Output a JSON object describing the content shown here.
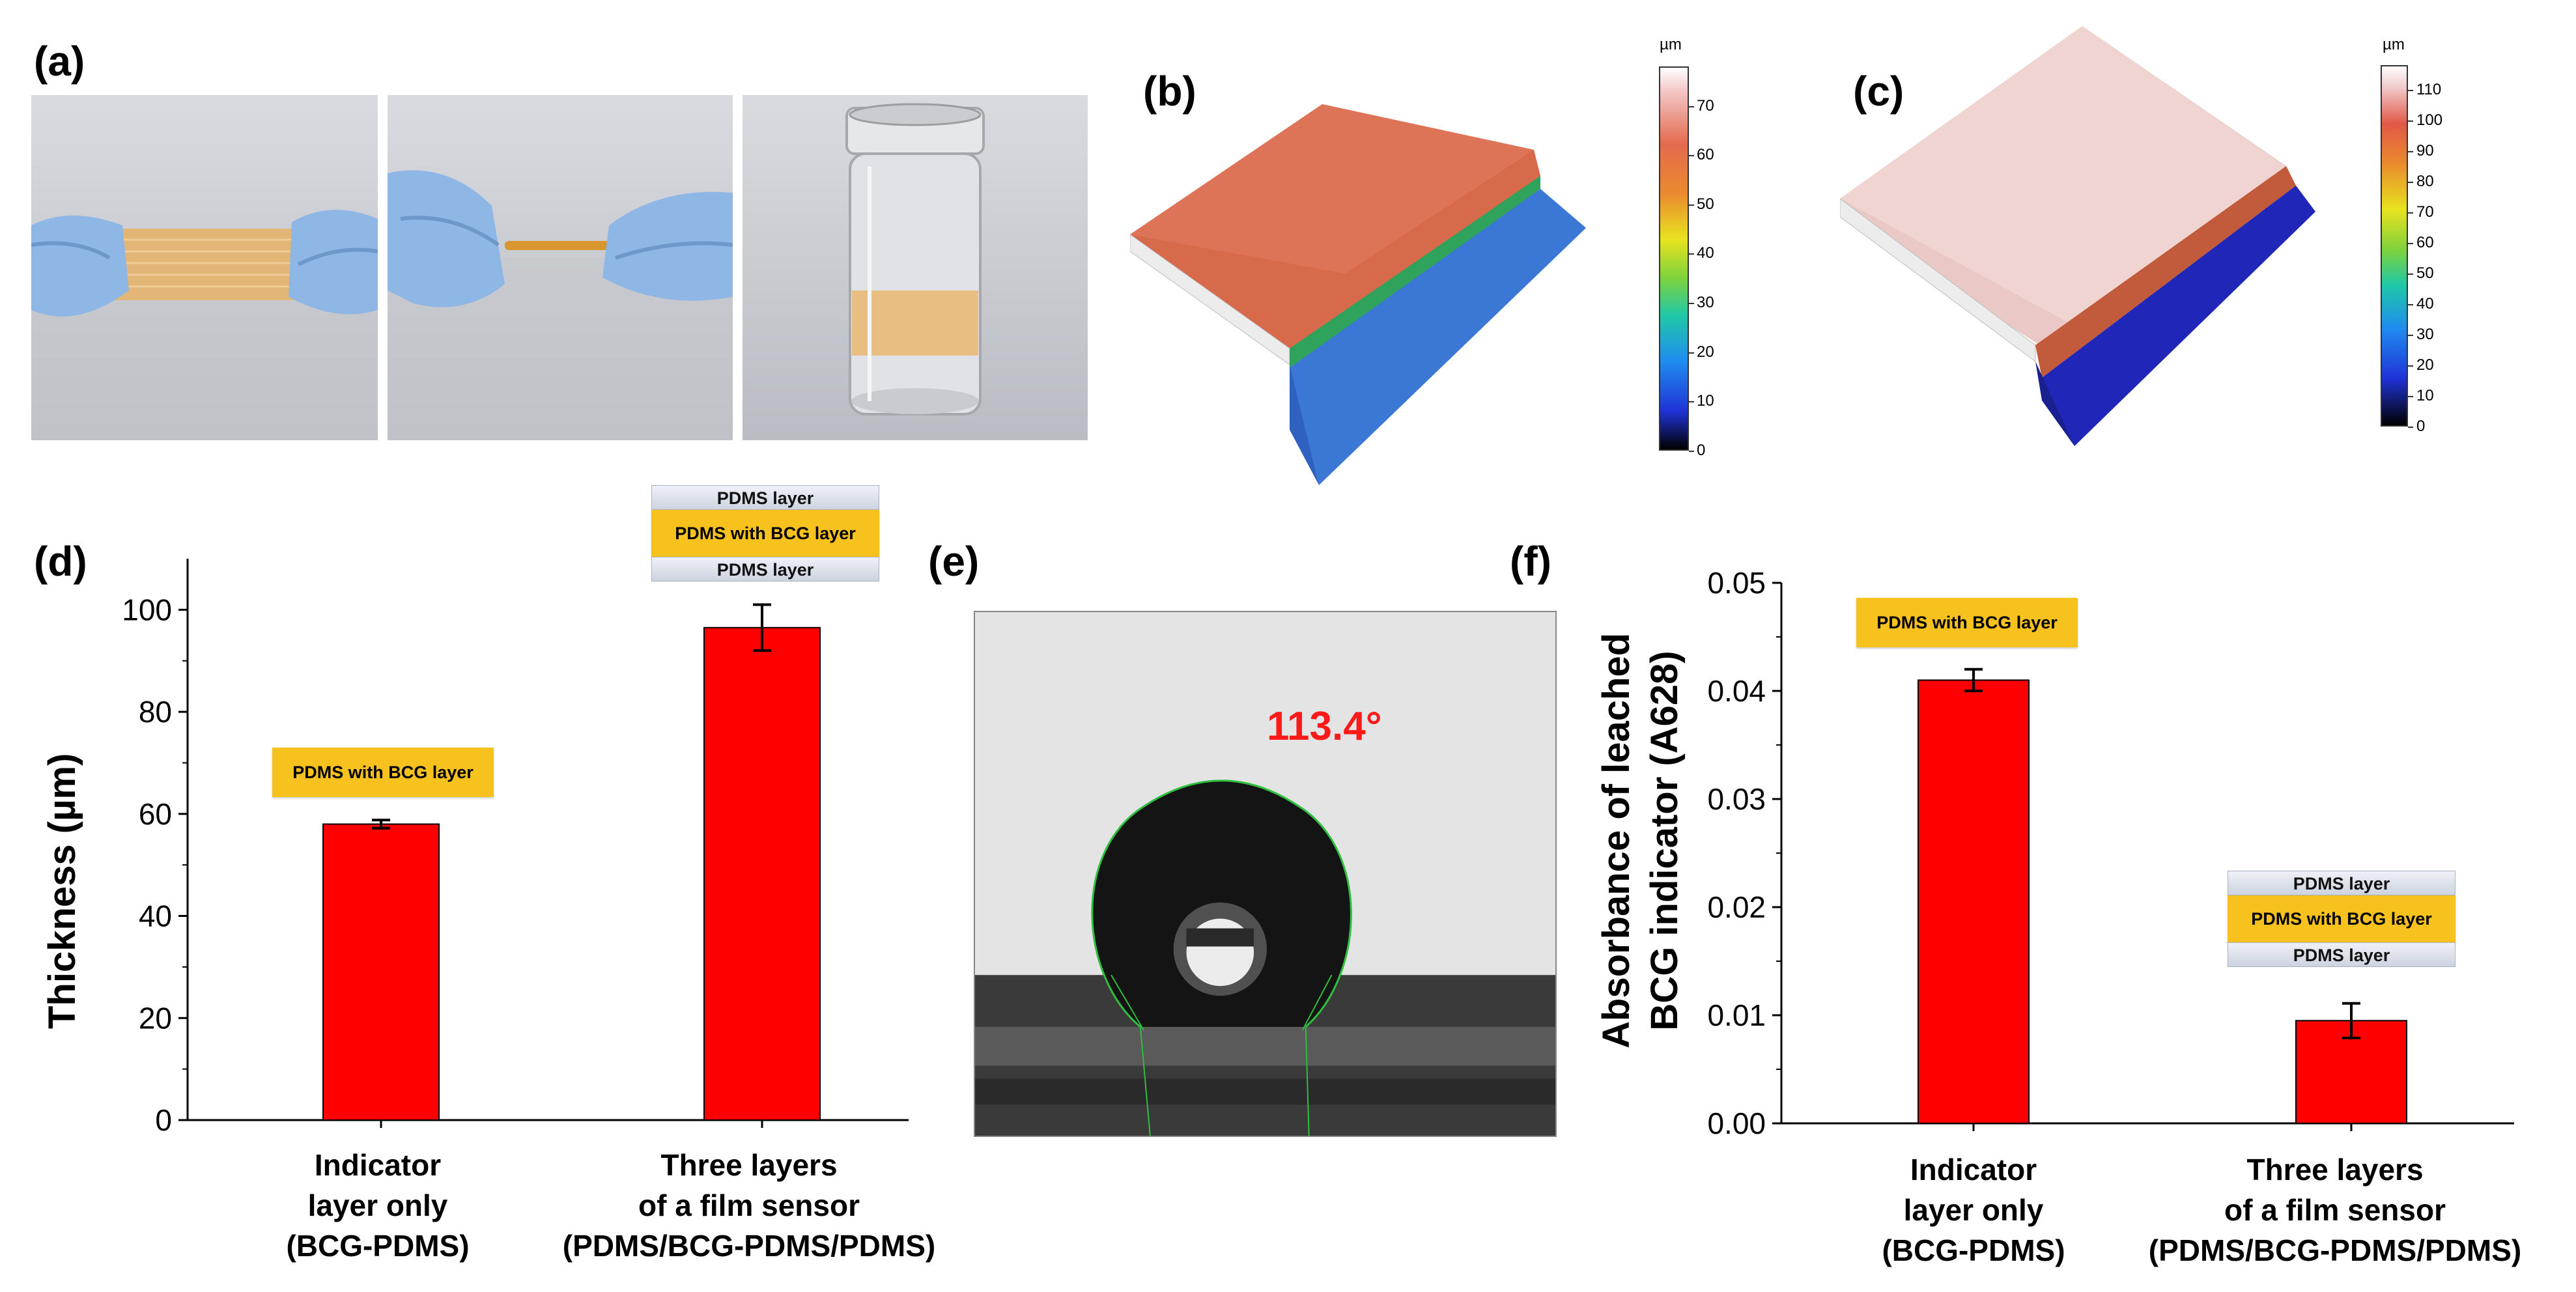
{
  "panels": {
    "a": "(a)",
    "b": "(b)",
    "c": "(c)",
    "d": "(d)",
    "e": "(e)",
    "f": "(f)"
  },
  "colorbar_b": {
    "unit": "µm",
    "ticks": [
      "70",
      "60",
      "50",
      "40",
      "30",
      "20",
      "10",
      "0"
    ],
    "max": 78
  },
  "colorbar_c": {
    "unit": "µm",
    "ticks": [
      "110",
      "100",
      "90",
      "80",
      "70",
      "60",
      "50",
      "40",
      "30",
      "20",
      "10",
      "0"
    ],
    "max": 118
  },
  "contact_angle": "113.4°",
  "layer_labels": {
    "pdms": "PDMS layer",
    "bcg": "PDMS with BCG layer"
  },
  "chart_data": [
    {
      "type": "bar",
      "panel": "d",
      "categories": [
        "Indicator layer only (BCG-PDMS)",
        "Three layers of a film sensor (PDMS/BCG-PDMS/PDMS)"
      ],
      "category_lines": [
        [
          "Indicator",
          "layer only",
          "(BCG-PDMS)"
        ],
        [
          "Three layers",
          "of a film sensor",
          "(PDMS/BCG-PDMS/PDMS)"
        ]
      ],
      "values": [
        58,
        96.5
      ],
      "errors": [
        0.8,
        4.5
      ],
      "ylabel": "Thickness (µm)",
      "ylim": [
        0,
        110
      ],
      "yticks": [
        "0",
        "20",
        "40",
        "60",
        "80",
        "100"
      ],
      "ytick_values": [
        0,
        20,
        40,
        60,
        80,
        100
      ],
      "bar_color": "#ff0000"
    },
    {
      "type": "bar",
      "panel": "f",
      "categories": [
        "Indicator layer only (BCG-PDMS)",
        "Three layers of a film sensor (PDMS/BCG-PDMS/PDMS)"
      ],
      "category_lines": [
        [
          "Indicator",
          "layer only",
          "(BCG-PDMS)"
        ],
        [
          "Three layers",
          "of a film sensor",
          "(PDMS/BCG-PDMS/PDMS)"
        ]
      ],
      "values": [
        0.041,
        0.0095
      ],
      "errors": [
        0.001,
        0.0016
      ],
      "ylabel_lines": [
        "Absorbance of leached",
        "BCG indicator (A628)"
      ],
      "ylim": [
        0,
        0.05
      ],
      "yticks": [
        "0.00",
        "0.01",
        "0.02",
        "0.03",
        "0.04",
        "0.05"
      ],
      "ytick_values": [
        0,
        0.01,
        0.02,
        0.03,
        0.04,
        0.05
      ],
      "bar_color": "#ff0000"
    }
  ]
}
